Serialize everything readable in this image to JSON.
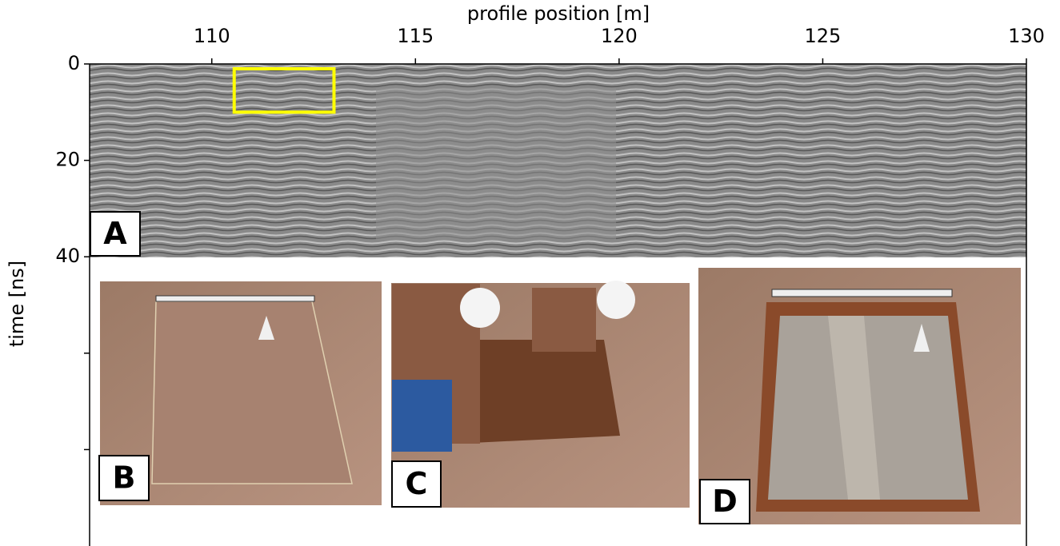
{
  "chart_data": {
    "type": "image",
    "xlabel": "profile position [m]",
    "ylabel": "time [ns]",
    "xlim": [
      107,
      130
    ],
    "xticks": [
      110,
      115,
      120,
      125,
      130
    ],
    "ylim": [
      0,
      100
    ],
    "yticks": [
      0,
      20,
      40
    ],
    "yminorticks": [
      60,
      80
    ],
    "highlight": {
      "xlim": [
        110.55,
        113
      ],
      "ylim": [
        1,
        10
      ],
      "color": "#ffff00"
    },
    "panels": [
      "A",
      "B",
      "C",
      "D"
    ]
  }
}
